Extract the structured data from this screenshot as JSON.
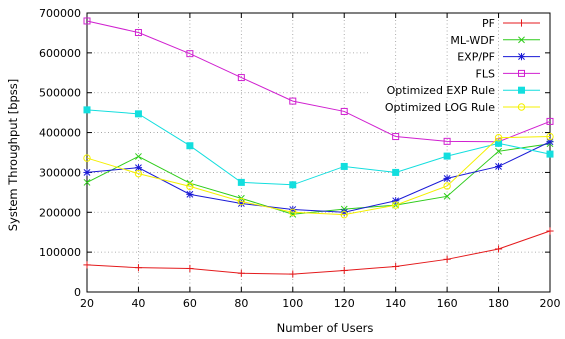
{
  "chart_data": {
    "type": "line",
    "title": "",
    "xlabel": "Number of Users",
    "ylabel": "System Throughput [bpss]",
    "x": [
      20,
      40,
      60,
      80,
      100,
      120,
      140,
      160,
      180,
      200
    ],
    "xlim": [
      20,
      200
    ],
    "ylim": [
      0,
      700000
    ],
    "xticks": [
      "20",
      "40",
      "60",
      "80",
      "100",
      "120",
      "140",
      "160",
      "180",
      "200"
    ],
    "yticks": [
      "0",
      "100000",
      "200000",
      "300000",
      "400000",
      "500000",
      "600000",
      "700000"
    ],
    "grid": true,
    "legend_position": "top-right",
    "series": [
      {
        "name": "PF",
        "color": "#e41a1c",
        "marker": "plus",
        "values": [
          68000,
          61000,
          59000,
          47000,
          45000,
          54000,
          64000,
          82000,
          108000,
          153000
        ]
      },
      {
        "name": "ML-WDF",
        "color": "#2ecc1a",
        "marker": "x",
        "values": [
          275000,
          340000,
          273000,
          235000,
          195000,
          208000,
          218000,
          240000,
          353000,
          372000
        ]
      },
      {
        "name": "EXP/PF",
        "color": "#1a1ad6",
        "marker": "star",
        "values": [
          300000,
          312000,
          245000,
          222000,
          207000,
          200000,
          229000,
          285000,
          315000,
          377000
        ]
      },
      {
        "name": "FLS",
        "color": "#d020d0",
        "marker": "square-open",
        "values": [
          680000,
          651000,
          598000,
          538000,
          479000,
          453000,
          390000,
          378000,
          377000,
          428000
        ]
      },
      {
        "name": "Optimized EXP Rule",
        "color": "#13dede",
        "marker": "square-filled",
        "values": [
          457000,
          447000,
          367000,
          275000,
          269000,
          315000,
          300000,
          341000,
          373000,
          346000
        ]
      },
      {
        "name": "Optimized LOG Rule",
        "color": "#f4f000",
        "marker": "circle-open",
        "values": [
          336000,
          297000,
          265000,
          227000,
          200000,
          194000,
          218000,
          266000,
          387000,
          390000
        ]
      }
    ]
  }
}
